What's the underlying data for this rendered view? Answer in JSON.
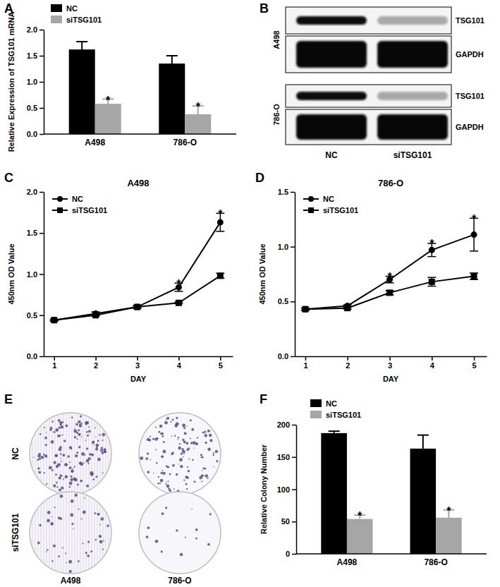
{
  "chart_data": [
    {
      "panel": "A",
      "type": "bar",
      "y_label": "Relative Expression of TSG101 mRNA",
      "categories": [
        "A498",
        "786-O"
      ],
      "series": [
        {
          "name": "NC",
          "color": "#000000",
          "values": [
            1.62,
            1.35
          ],
          "errors": [
            0.15,
            0.15
          ]
        },
        {
          "name": "siTSG101",
          "color": "#a6a6a6",
          "values": [
            0.58,
            0.38
          ],
          "errors": [
            0.09,
            0.16
          ]
        }
      ],
      "ylim": [
        0,
        2
      ],
      "yticks": [
        {
          "value": 0,
          "label": "0.0"
        },
        0.5,
        {
          "value": 1,
          "label": "1.0"
        },
        1.5,
        {
          "value": 2,
          "label": "2.0"
        }
      ],
      "legend": "top-left",
      "annotations": [
        {
          "text": "*",
          "category": "A498",
          "series": "siTSG101",
          "y": 0.68
        },
        {
          "text": "*",
          "category": "786-O",
          "series": "siTSG101",
          "y": 0.55
        }
      ]
    },
    {
      "panel": "B",
      "type": "blot",
      "lanes": [
        "NC",
        "siTSG101"
      ],
      "blots": [
        {
          "label": "A498",
          "bands": [
            "TSG101",
            "GAPDH"
          ]
        },
        {
          "label": "786-O",
          "bands": [
            "TSG101",
            "GAPDH"
          ]
        }
      ]
    },
    {
      "panel": "C",
      "type": "line",
      "title": "A498",
      "x_label": "DAY",
      "y_label": "450nm OD Value",
      "x": [
        1,
        2,
        3,
        4,
        5
      ],
      "series": [
        {
          "name": "NC",
          "color": "#000000",
          "marker": "circle",
          "values": [
            0.44,
            0.52,
            0.6,
            0.84,
            1.63
          ],
          "errors": [
            0.01,
            0.02,
            0.02,
            0.05,
            0.11
          ]
        },
        {
          "name": "siTSG101",
          "color": "#000000",
          "marker": "square",
          "values": [
            0.44,
            0.5,
            0.6,
            0.65,
            0.98
          ],
          "errors": [
            0.01,
            0.01,
            0.01,
            0.01,
            0.03
          ]
        }
      ],
      "xlim": [
        0.75,
        5.3
      ],
      "xticks": [
        1,
        2,
        3,
        4,
        5
      ],
      "ylim": [
        0,
        2
      ],
      "yticks": [
        {
          "value": 0,
          "label": "0.0"
        },
        0.5,
        {
          "value": 1,
          "label": "1.0"
        },
        1.5,
        {
          "value": 2,
          "label": "2.0"
        }
      ],
      "legend": "top-left",
      "annotations": [
        {
          "text": "*",
          "x": 4,
          "y": 0.9
        },
        {
          "text": "*",
          "x": 5,
          "y": 1.75
        }
      ]
    },
    {
      "panel": "D",
      "type": "line",
      "title": "786-O",
      "x_label": "DAY",
      "y_label": "450nm OD Value",
      "x": [
        1,
        2,
        3,
        4,
        5
      ],
      "series": [
        {
          "name": "NC",
          "color": "#000000",
          "marker": "circle",
          "values": [
            0.43,
            0.46,
            0.7,
            0.97,
            1.11
          ],
          "errors": [
            0.01,
            0.01,
            0.03,
            0.06,
            0.15
          ]
        },
        {
          "name": "siTSG101",
          "color": "#000000",
          "marker": "square",
          "values": [
            0.43,
            0.44,
            0.58,
            0.68,
            0.73
          ],
          "errors": [
            0.01,
            0.01,
            0.02,
            0.04,
            0.03
          ]
        }
      ],
      "xlim": [
        0.75,
        5.3
      ],
      "xticks": [
        1,
        2,
        3,
        4,
        5
      ],
      "ylim": [
        0,
        1.5
      ],
      "yticks": [
        {
          "value": 0,
          "label": "0.0"
        },
        0.5,
        {
          "value": 1,
          "label": "1.0"
        },
        1.5
      ],
      "legend": "top-left",
      "annotations": [
        {
          "text": "*",
          "x": 3,
          "y": 0.74
        },
        {
          "text": "*",
          "x": 4,
          "y": 1.04
        },
        {
          "text": "*",
          "x": 5,
          "y": 1.27
        }
      ]
    },
    {
      "panel": "E",
      "type": "colony_images",
      "rows": [
        "NC",
        "siTSG101"
      ],
      "columns": [
        "A498",
        "786-O"
      ]
    },
    {
      "panel": "F",
      "type": "bar",
      "y_label": "Relative Colony Number",
      "categories": [
        "A498",
        "786-O"
      ],
      "series": [
        {
          "name": "NC",
          "color": "#000000",
          "values": [
            187,
            163
          ],
          "errors": [
            3,
            21
          ]
        },
        {
          "name": "siTSG101",
          "color": "#a6a6a6",
          "values": [
            54,
            56
          ],
          "errors": [
            6,
            12
          ]
        }
      ],
      "ylim": [
        0,
        200
      ],
      "yticks": [
        0,
        50,
        100,
        150,
        200
      ],
      "legend": "top-left",
      "annotations": [
        {
          "text": "*",
          "category": "A498",
          "series": "siTSG101",
          "y": 61
        },
        {
          "text": "*",
          "category": "786-O",
          "series": "siTSG101",
          "y": 69
        }
      ]
    }
  ]
}
